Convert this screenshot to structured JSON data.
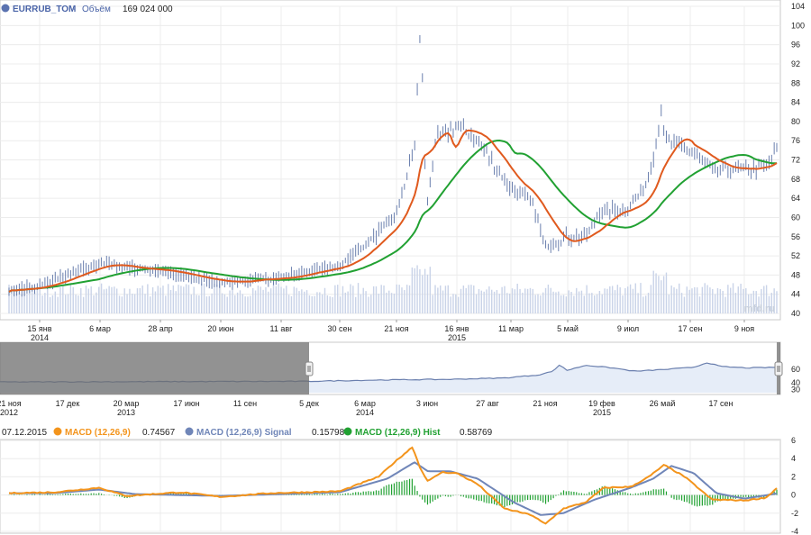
{
  "header": {
    "ticker": "EURRUB_TOM",
    "separator": " - ",
    "volume_label": "Объём",
    "volume_value": "169 024 000",
    "watermark": "mfd.ru"
  },
  "main_chart": {
    "yticks": [
      "104",
      "100",
      "96",
      "92",
      "88",
      "84",
      "80",
      "76",
      "72",
      "68",
      "64",
      "60",
      "56",
      "52",
      "48",
      "44",
      "40"
    ],
    "ylim": [
      40,
      104
    ],
    "xticks": [
      {
        "label": "15 янв",
        "sub": "2014"
      },
      {
        "label": "6 мар",
        "sub": ""
      },
      {
        "label": "28 апр",
        "sub": ""
      },
      {
        "label": "20 июн",
        "sub": ""
      },
      {
        "label": "11 авг",
        "sub": ""
      },
      {
        "label": "30 сен",
        "sub": ""
      },
      {
        "label": "21 ноя",
        "sub": ""
      },
      {
        "label": "16 янв",
        "sub": "2015"
      },
      {
        "label": "11 мар",
        "sub": ""
      },
      {
        "label": "5 май",
        "sub": ""
      },
      {
        "label": "9 июл",
        "sub": ""
      },
      {
        "label": "17 сен",
        "sub": ""
      },
      {
        "label": "9 ноя",
        "sub": ""
      }
    ],
    "colors": {
      "price": "#6a7fae",
      "ma_fast": "#e05a1e",
      "ma_slow": "#21a132",
      "volume": "#c9d3e8"
    }
  },
  "navigator": {
    "yticks": [
      "60",
      "40",
      "30"
    ],
    "xticks": [
      {
        "label": "21 ноя",
        "sub": "2012"
      },
      {
        "label": "17 дек",
        "sub": ""
      },
      {
        "label": "20 мар",
        "sub": "2013"
      },
      {
        "label": "17 июн",
        "sub": ""
      },
      {
        "label": "11 сен",
        "sub": ""
      },
      {
        "label": "5 дек",
        "sub": ""
      },
      {
        "label": "6 мар",
        "sub": "2014"
      },
      {
        "label": "3 июн",
        "sub": ""
      },
      {
        "label": "27 авг",
        "sub": ""
      },
      {
        "label": "21 ноя",
        "sub": ""
      },
      {
        "label": "19 фев",
        "sub": "2015"
      },
      {
        "label": "26 май",
        "sub": ""
      },
      {
        "label": "17 сен",
        "sub": ""
      }
    ]
  },
  "macd": {
    "date": "07.12.2015",
    "legend": [
      {
        "name": "MACD (12,26,9)",
        "value": "0.74567",
        "color": "#f3941c"
      },
      {
        "name": "MACD (12,26,9) Signal",
        "value": "0.15798",
        "color": "#7086b8"
      },
      {
        "name": "MACD (12,26,9) Hist",
        "value": "0.58769",
        "color": "#21a132"
      }
    ],
    "yticks": [
      "6",
      "4",
      "2",
      "0",
      "-2",
      "-4"
    ],
    "ylim": [
      -4,
      6
    ]
  },
  "chart_data": [
    {
      "type": "line",
      "title": "EURRUB_TOM",
      "x": [
        "15 янв 2014",
        "6 мар",
        "28 апр",
        "20 июн",
        "11 авг",
        "30 сен",
        "21 ноя",
        "16 янв 2015",
        "11 мар",
        "5 май",
        "9 июл",
        "17 сен",
        "9 ноя",
        "07.12.2015"
      ],
      "series": [
        {
          "name": "EURRUB_TOM",
          "values": [
            44.8,
            50.5,
            49.0,
            46.5,
            47.5,
            50.0,
            60.5,
            79.0,
            66.0,
            56.0,
            62.0,
            74.0,
            70.0,
            74.5
          ]
        }
      ],
      "ylim": [
        40,
        104
      ]
    },
    {
      "type": "line",
      "x": [
        "07.12.2015"
      ],
      "series": [
        {
          "name": "MACD (12,26,9)",
          "values": [
            0.74567
          ]
        },
        {
          "name": "MACD (12,26,9) Signal",
          "values": [
            0.15798
          ]
        },
        {
          "name": "MACD (12,26,9) Hist",
          "values": [
            0.58769
          ]
        }
      ],
      "ylim": [
        -4,
        6
      ]
    }
  ]
}
